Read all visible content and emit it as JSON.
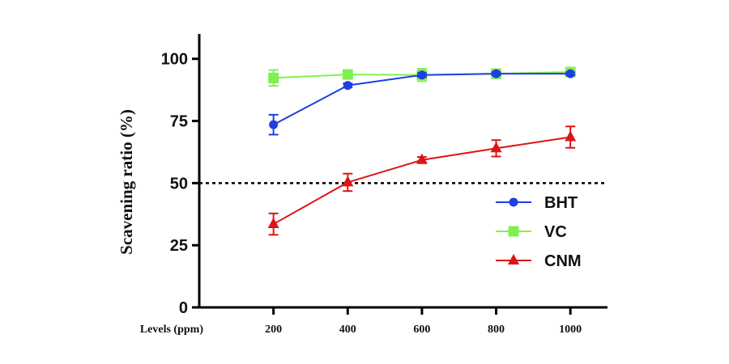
{
  "chart_data": {
    "type": "line",
    "x": [
      200,
      400,
      600,
      800,
      1000
    ],
    "xlabel": "Levels (ppm)",
    "ylabel": "Scavening ratio (%)",
    "ylim": [
      0,
      110
    ],
    "yticks": [
      0,
      25,
      50,
      75,
      100
    ],
    "xlim": [
      0,
      1100
    ],
    "xticks": [
      200,
      400,
      600,
      800,
      1000
    ],
    "reference_line": {
      "y": 50,
      "style": "dotted"
    },
    "legend_position": "right",
    "series": [
      {
        "name": "BHT",
        "color": "#1f3fe0",
        "marker": "circle",
        "values": [
          73.5,
          89.3,
          93.5,
          94.0,
          94.0
        ],
        "errors": [
          4.0,
          0.8,
          0.8,
          0.6,
          0.6
        ]
      },
      {
        "name": "VC",
        "color": "#80f050",
        "marker": "square",
        "values": [
          92.3,
          93.7,
          93.5,
          94.0,
          94.7
        ],
        "errors": [
          3.2,
          1.2,
          2.5,
          1.8,
          1.2
        ]
      },
      {
        "name": "CNM",
        "color": "#dd1414",
        "marker": "triangle",
        "values": [
          33.5,
          50.3,
          59.3,
          64.0,
          68.5
        ],
        "errors": [
          4.3,
          3.5,
          1.2,
          3.3,
          4.3
        ]
      }
    ]
  }
}
